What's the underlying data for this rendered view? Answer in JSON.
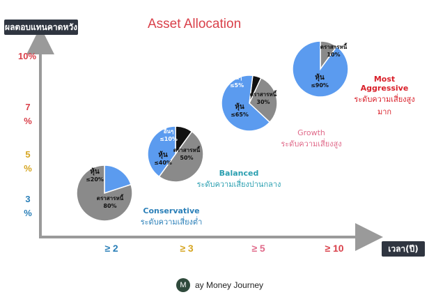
{
  "chart_data": {
    "type": "pie",
    "title": "Asset Allocation",
    "ylabel": "ผลตอบแทนคาดหวัง",
    "xlabel": "เวลา(ปี)",
    "y_ticks": [
      {
        "label": "3 %",
        "color": "#2a7fb8"
      },
      {
        "label": "5 %",
        "color": "#d6a520"
      },
      {
        "label": "7 %",
        "color": "#d9404a"
      },
      {
        "label": "10%",
        "color": "#d9404a"
      }
    ],
    "x_ticks": [
      {
        "label": "≥ 2",
        "color": "#2a7fb8"
      },
      {
        "label": "≥ 3",
        "color": "#d6a520"
      },
      {
        "label": "≥ 5",
        "color": "#e06a8a"
      },
      {
        "label": "≥ 10",
        "color": "#d9404a"
      }
    ],
    "portfolios": [
      {
        "name": "Conservative",
        "subtitle": "ระดับความเสี่ยงต่ำ",
        "color": "#2a7fb8",
        "slices": [
          {
            "label": "หุ้น",
            "value_label": "≤20%",
            "value": 20,
            "color": "#5b9bef"
          },
          {
            "label": "ตราสารหนี้",
            "value_label": "80%",
            "value": 80,
            "color": "#8a8a8a"
          }
        ]
      },
      {
        "name": "Balanced",
        "subtitle": "ระดับความเสี่ยงปานกลาง",
        "color": "#2a9fb0",
        "slices": [
          {
            "label": "อื่นๆ",
            "value_label": "≤10%",
            "value": 10,
            "color": "#111111"
          },
          {
            "label": "ตราสารหนี้",
            "value_label": "50%",
            "value": 50,
            "color": "#8a8a8a"
          },
          {
            "label": "หุ้น",
            "value_label": "≤40%",
            "value": 40,
            "color": "#5b9bef"
          }
        ]
      },
      {
        "name": "Growth",
        "subtitle": "ระดับความเสี่ยงสูง",
        "color": "#e06a8a",
        "slices": [
          {
            "label": "อื่นๆ",
            "value_label": "≤5%",
            "value": 5,
            "color": "#111111"
          },
          {
            "label": "ตราสารหนี้",
            "value_label": "30%",
            "value": 30,
            "color": "#8a8a8a"
          },
          {
            "label": "หุ้น",
            "value_label": "≤65%",
            "value": 65,
            "color": "#5b9bef"
          }
        ]
      },
      {
        "name": "Most Aggressive",
        "subtitle": "ระดับความเสี่ยงสูงมาก",
        "color": "#d9202a",
        "slices": [
          {
            "label": "ตราสารหนี้",
            "value_label": "10%",
            "value": 10,
            "color": "#8a8a8a"
          },
          {
            "label": "หุ้น",
            "value_label": "≤90%",
            "value": 90,
            "color": "#5b9bef"
          }
        ]
      }
    ]
  },
  "footer": {
    "logo_letter": "M",
    "brand": "ay Money Journey"
  }
}
